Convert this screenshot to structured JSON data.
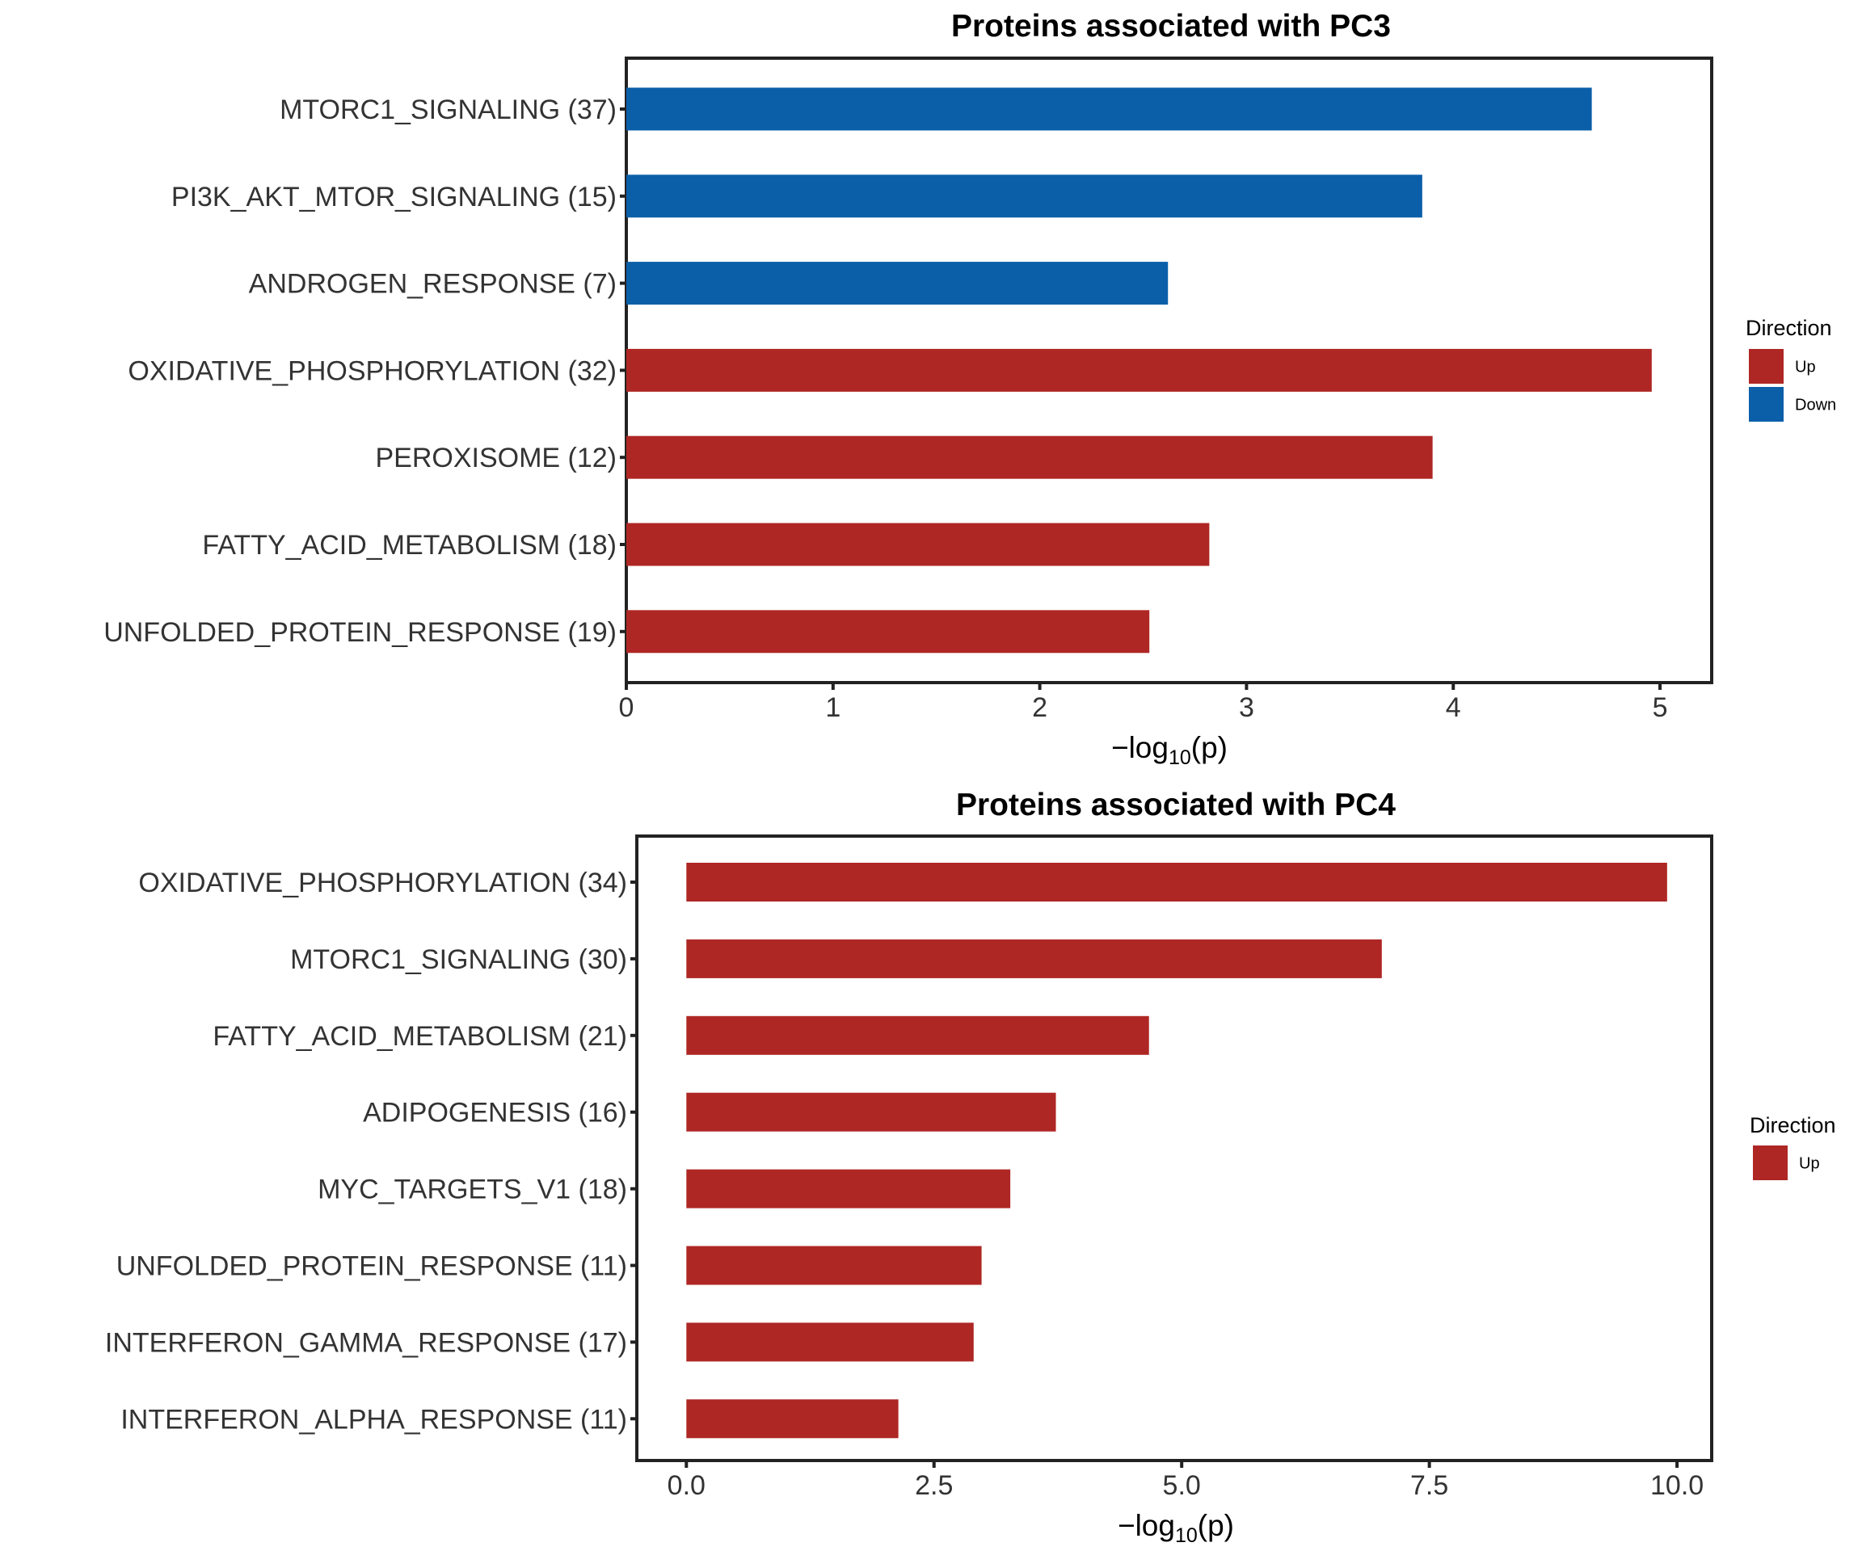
{
  "chart_data": [
    {
      "type": "bar",
      "orientation": "horizontal",
      "title": "Proteins associated with PC3",
      "xlabel": "−log10(p)",
      "xlim": [
        0,
        5.25
      ],
      "xticks": [
        "0",
        "1",
        "2",
        "3",
        "4",
        "5"
      ],
      "xtick_values": [
        0,
        1,
        2,
        3,
        4,
        5
      ],
      "grid": false,
      "legend": {
        "title": "Direction",
        "position": "right",
        "entries": [
          {
            "label": "Up",
            "color": "#AE2724"
          },
          {
            "label": "Down",
            "color": "#0B5FA8"
          }
        ]
      },
      "categories": [
        "MTORC1_SIGNALING (37)",
        "PI3K_AKT_MTOR_SIGNALING (15)",
        "ANDROGEN_RESPONSE (7)",
        "OXIDATIVE_PHOSPHORYLATION (32)",
        "PEROXISOME (12)",
        "FATTY_ACID_METABOLISM (18)",
        "UNFOLDED_PROTEIN_RESPONSE (19)"
      ],
      "values": [
        4.67,
        3.85,
        2.62,
        4.96,
        3.9,
        2.82,
        2.53
      ],
      "directions": [
        "Down",
        "Down",
        "Down",
        "Up",
        "Up",
        "Up",
        "Up"
      ]
    },
    {
      "type": "bar",
      "orientation": "horizontal",
      "title": "Proteins associated with PC4",
      "xlabel": "−log10(p)",
      "xlim": [
        -0.5,
        10.35
      ],
      "xticks": [
        "0.0",
        "2.5",
        "5.0",
        "7.5",
        "10.0"
      ],
      "xtick_values": [
        0,
        2.5,
        5,
        7.5,
        10
      ],
      "grid": false,
      "legend": {
        "title": "Direction",
        "position": "right",
        "entries": [
          {
            "label": "Up",
            "color": "#AE2724"
          }
        ]
      },
      "categories": [
        "OXIDATIVE_PHOSPHORYLATION (34)",
        "MTORC1_SIGNALING (30)",
        "FATTY_ACID_METABOLISM (21)",
        "ADIPOGENESIS (16)",
        "MYC_TARGETS_V1 (18)",
        "UNFOLDED_PROTEIN_RESPONSE (11)",
        "INTERFERON_GAMMA_RESPONSE (17)",
        "INTERFERON_ALPHA_RESPONSE (11)"
      ],
      "values": [
        9.9,
        7.02,
        4.67,
        3.73,
        3.27,
        2.98,
        2.9,
        2.14
      ],
      "directions": [
        "Up",
        "Up",
        "Up",
        "Up",
        "Up",
        "Up",
        "Up",
        "Up"
      ]
    }
  ]
}
